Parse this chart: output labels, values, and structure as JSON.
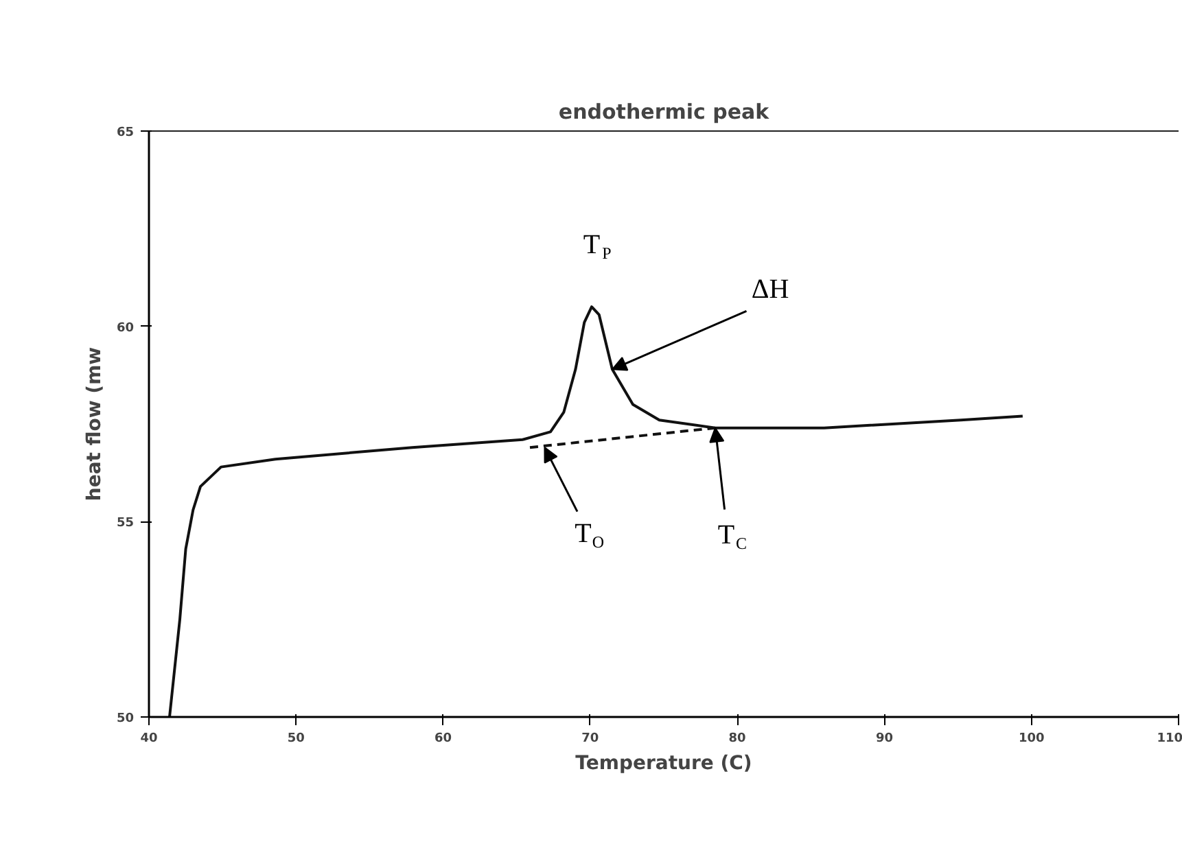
{
  "chart_data": {
    "type": "line",
    "title": "endothermic peak",
    "xlabel": "Temperature (C)",
    "ylabel": "heat flow (mw",
    "xlim": [
      40,
      110
    ],
    "ylim": [
      50,
      65
    ],
    "xticks": [
      40,
      50,
      60,
      70,
      80,
      90,
      100,
      110
    ],
    "yticks": [
      50,
      55,
      60,
      65
    ],
    "grid": false,
    "series": [
      {
        "color": "#111111",
        "line_style": "solid",
        "x": [
          41.4,
          42.1,
          42.5,
          43.0,
          43.5,
          44.9,
          48.6,
          57.9,
          65.4,
          67.3,
          68.2,
          69.0,
          69.6,
          70.1,
          70.6,
          71.5,
          72.9,
          74.7,
          78.5,
          85.9,
          95.2,
          99.4
        ],
        "values": [
          50.0,
          52.5,
          54.3,
          55.3,
          55.9,
          56.4,
          56.6,
          56.9,
          57.1,
          57.3,
          57.8,
          58.9,
          60.1,
          60.5,
          60.3,
          58.9,
          58.0,
          57.6,
          57.4,
          57.4,
          57.6,
          57.7
        ]
      },
      {
        "color": "#111111",
        "line_style": "dashed",
        "x": [
          65.9,
          78.5
        ],
        "values": [
          56.9,
          57.4
        ]
      }
    ],
    "annotations": [
      {
        "text": "T$_{P}$",
        "x": 70.1,
        "y": 60.5
      },
      {
        "text": "ΔH",
        "x": 71.5,
        "y": 58.9
      },
      {
        "text": "T$_{O}$",
        "x": 66.9,
        "y": 56.9
      },
      {
        "text": "T$_{C}$",
        "x": 78.5,
        "y": 57.4
      }
    ]
  }
}
